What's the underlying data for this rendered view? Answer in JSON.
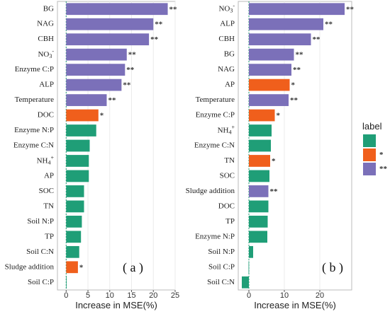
{
  "colors": {
    "none": "#1f9e77",
    "*": "#f05f1c",
    "**": "#7b70b9",
    "panel_bg": "#ffffff",
    "panel_border": "#bbbbbb",
    "grid": "#ebebeb"
  },
  "legend": {
    "title": "label",
    "entries": [
      {
        "key": "none",
        "text": ""
      },
      {
        "key": "*",
        "text": "*"
      },
      {
        "key": "**",
        "text": "**"
      }
    ]
  },
  "chart_data": [
    {
      "type": "bar",
      "orientation": "horizontal",
      "panel_tag": "( a )",
      "xlabel": "Increase in MSE(%)",
      "xlim": [
        -2,
        25
      ],
      "xticks": [
        0,
        5,
        10,
        15,
        20,
        25
      ],
      "categories": [
        "BG",
        "NAG",
        "CBH",
        "NO3-",
        "Enzyme C:P",
        "ALP",
        "Temperature",
        "DOC",
        "Enzyme N:P",
        "Enzyme C:N",
        "NH4+",
        "AP",
        "SOC",
        "TN",
        "Soil N:P",
        "TP",
        "Soil C:N",
        "Sludge addition",
        "Soil C:P"
      ],
      "values": [
        23.3,
        20.0,
        19.0,
        13.9,
        13.5,
        12.7,
        9.3,
        7.4,
        6.9,
        5.4,
        5.2,
        5.2,
        4.1,
        4.1,
        3.6,
        3.4,
        3.0,
        2.7,
        0.1
      ],
      "labels": [
        "**",
        "**",
        "**",
        "**",
        "**",
        "**",
        "**",
        "*",
        "none",
        "none",
        "none",
        "none",
        "none",
        "none",
        "none",
        "none",
        "none",
        "*",
        "none"
      ],
      "grid": true
    },
    {
      "type": "bar",
      "orientation": "horizontal",
      "panel_tag": "( b )",
      "xlabel": "Increase in MSE(%)",
      "xlim": [
        -3,
        29
      ],
      "xticks": [
        0,
        10,
        20
      ],
      "categories": [
        "NO3-",
        "ALP",
        "CBH",
        "BG",
        "NAG",
        "AP",
        "Temperature",
        "Enzyme C:P",
        "NH4+",
        "Enzyme C:N",
        "TN",
        "SOC",
        "Sludge addition",
        "DOC",
        "TP",
        "Enzyme N:P",
        "Soil N:P",
        "Soil C:P",
        "Soil C:N"
      ],
      "values": [
        27.0,
        21.0,
        17.5,
        12.7,
        12.0,
        11.5,
        11.2,
        7.3,
        6.4,
        6.2,
        6.0,
        5.8,
        5.5,
        5.5,
        5.3,
        5.2,
        1.2,
        -0.1,
        -2.0
      ],
      "labels": [
        "**",
        "**",
        "**",
        "**",
        "**",
        "*",
        "**",
        "*",
        "none",
        "none",
        "*",
        "none",
        "**",
        "none",
        "none",
        "none",
        "none",
        "none",
        "none"
      ],
      "grid": true
    }
  ]
}
